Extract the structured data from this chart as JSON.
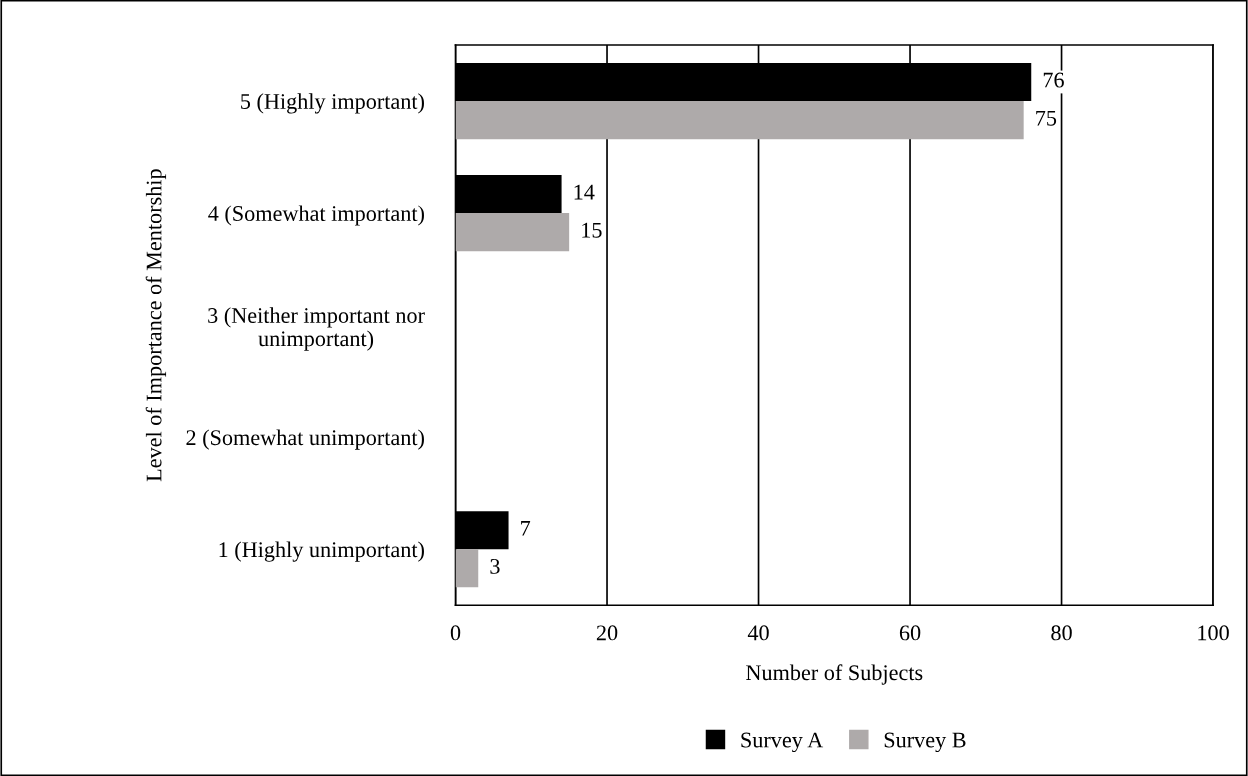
{
  "chart_data": {
    "type": "bar",
    "orientation": "horizontal",
    "categories": [
      "5 (Highly important)",
      "4 (Somewhat important)",
      "3 (Neither important nor\nunimportant)",
      "2 (Somewhat unimportant)",
      "1 (Highly unimportant)"
    ],
    "series": [
      {
        "name": "Survey A",
        "color": "#000000",
        "values": [
          76,
          14,
          0,
          0,
          7
        ],
        "value_labels": [
          "76",
          "14",
          null,
          null,
          "7"
        ]
      },
      {
        "name": "Survey B",
        "color": "#aeaaaa",
        "values": [
          75,
          15,
          0,
          0,
          3
        ],
        "value_labels": [
          "75",
          "15",
          null,
          null,
          "3"
        ]
      }
    ],
    "xlabel": "Number of Subjects",
    "ylabel": "Level of Importance of Mentorship",
    "xlim": [
      0,
      100
    ],
    "xticks": [
      0,
      20,
      40,
      60,
      80,
      100
    ],
    "grid": "x",
    "legend": "bottom"
  }
}
